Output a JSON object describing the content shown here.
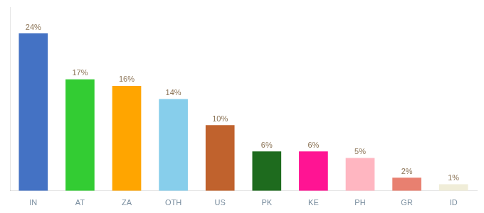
{
  "chart_data": {
    "type": "bar",
    "categories": [
      "IN",
      "AT",
      "ZA",
      "OTH",
      "US",
      "PK",
      "KE",
      "PH",
      "GR",
      "ID"
    ],
    "values": [
      24,
      17,
      16,
      14,
      10,
      6,
      6,
      5,
      2,
      1
    ],
    "value_labels": [
      "24%",
      "17%",
      "16%",
      "14%",
      "10%",
      "6%",
      "6%",
      "5%",
      "2%",
      "1%"
    ],
    "colors": [
      "#4472C4",
      "#33CC33",
      "#FFA500",
      "#87CEEB",
      "#C0622D",
      "#1E6B1E",
      "#FF1493",
      "#FFB6C1",
      "#E88070",
      "#F0EDD8"
    ],
    "ylim": [
      0,
      28
    ],
    "grid": false,
    "data_labels": true,
    "tick_labels": "x"
  }
}
